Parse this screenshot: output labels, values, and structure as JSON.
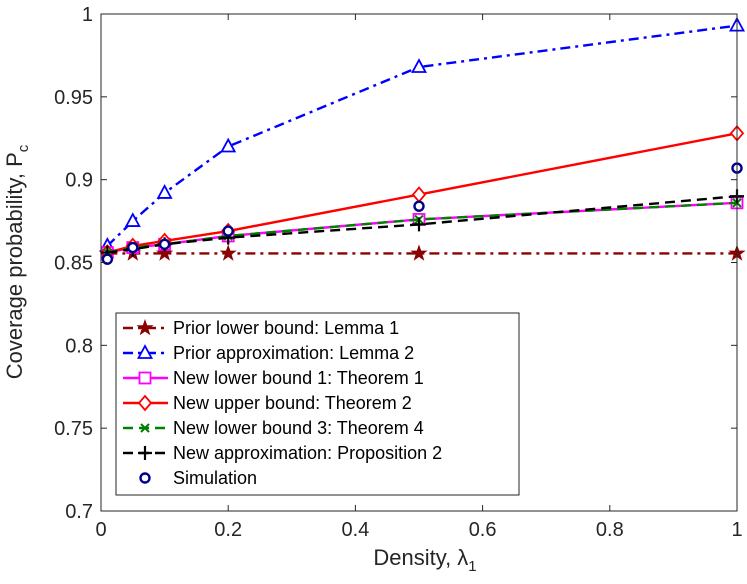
{
  "chart_data": {
    "type": "line",
    "title": "",
    "xlabel": "Density, λ",
    "xlabel_sub": "1",
    "ylabel": "Coverage probability, P",
    "ylabel_sub": "c",
    "xlim": [
      0,
      1
    ],
    "ylim": [
      0.7,
      1
    ],
    "xticks": [
      0,
      0.2,
      0.4,
      0.6,
      0.8,
      1
    ],
    "xtick_labels": [
      "0",
      "0.2",
      "0.4",
      "0.6",
      "0.8",
      "1"
    ],
    "yticks": [
      0.7,
      0.75,
      0.8,
      0.85,
      0.9,
      0.95,
      1
    ],
    "ytick_labels": [
      "0.7",
      "0.75",
      "0.8",
      "0.85",
      "0.9",
      "0.95",
      "1"
    ],
    "grid": false,
    "legend_position": "bottom-left",
    "series": [
      {
        "name": "Prior lower bound: Lemma 1",
        "color": "#8b0000",
        "dash": "dashdot",
        "marker": "star",
        "x": [
          0.01,
          0.05,
          0.1,
          0.2,
          0.5,
          1.0
        ],
        "y": [
          0.8555,
          0.8555,
          0.8555,
          0.8555,
          0.8555,
          0.8555
        ]
      },
      {
        "name": "Prior approximation: Lemma 2",
        "color": "#0000ff",
        "dash": "dashdot",
        "marker": "triangle",
        "x": [
          0.01,
          0.05,
          0.1,
          0.2,
          0.5,
          1.0
        ],
        "y": [
          0.86,
          0.875,
          0.892,
          0.92,
          0.968,
          0.993
        ]
      },
      {
        "name": "New lower bound 1: Theorem 1",
        "color": "#ff00ff",
        "dash": "solid",
        "marker": "square",
        "x": [
          0.01,
          0.05,
          0.1,
          0.2,
          0.5,
          1.0
        ],
        "y": [
          0.856,
          0.859,
          0.861,
          0.866,
          0.876,
          0.886
        ]
      },
      {
        "name": "New upper bound: Theorem 2",
        "color": "#ff0000",
        "dash": "solid",
        "marker": "diamond",
        "x": [
          0.01,
          0.05,
          0.1,
          0.2,
          0.5,
          1.0
        ],
        "y": [
          0.856,
          0.86,
          0.863,
          0.869,
          0.891,
          0.928
        ]
      },
      {
        "name": "New lower bound 3: Theorem 4",
        "color": "#008000",
        "dash": "dashed",
        "marker": "x",
        "x": [
          0.01,
          0.05,
          0.1,
          0.2,
          0.5,
          1.0
        ],
        "y": [
          0.856,
          0.859,
          0.861,
          0.866,
          0.876,
          0.886
        ]
      },
      {
        "name": "New approximation: Proposition 2",
        "color": "#000000",
        "dash": "dashed",
        "marker": "plus",
        "x": [
          0.01,
          0.05,
          0.1,
          0.2,
          0.5,
          1.0
        ],
        "y": [
          0.856,
          0.858,
          0.861,
          0.865,
          0.873,
          0.89
        ]
      },
      {
        "name": "Simulation",
        "color": "#00008b",
        "dash": "none",
        "marker": "circle",
        "x": [
          0.01,
          0.05,
          0.1,
          0.2,
          0.5,
          1.0
        ],
        "y": [
          0.852,
          0.859,
          0.861,
          0.869,
          0.884,
          0.907
        ]
      }
    ]
  }
}
